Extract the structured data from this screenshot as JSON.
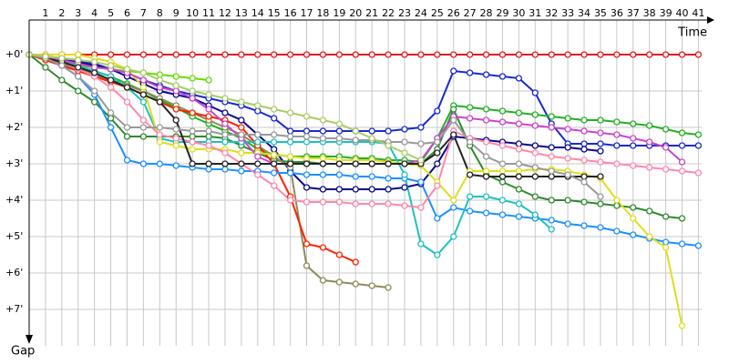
{
  "chart_data": {
    "type": "line",
    "x_label": "Time",
    "y_label": "Gap",
    "x": [
      0,
      1,
      2,
      3,
      4,
      5,
      6,
      7,
      8,
      9,
      10,
      11,
      12,
      13,
      14,
      15,
      16,
      17,
      18,
      19,
      20,
      21,
      22,
      23,
      24,
      25,
      26,
      27,
      28,
      29,
      30,
      31,
      32,
      33,
      34,
      35,
      36,
      37,
      38,
      39,
      40,
      41
    ],
    "xlim": [
      0,
      41.2
    ],
    "xticks": [
      1,
      2,
      3,
      4,
      5,
      6,
      7,
      8,
      9,
      10,
      11,
      12,
      13,
      14,
      15,
      16,
      17,
      18,
      19,
      20,
      21,
      22,
      23,
      24,
      25,
      26,
      27,
      28,
      29,
      30,
      31,
      32,
      33,
      34,
      35,
      36,
      37,
      38,
      39,
      40,
      41
    ],
    "ylim": [
      -0.95,
      8.05
    ],
    "yticks": [
      {
        "value": 0,
        "label": "+0'"
      },
      {
        "value": 1,
        "label": "+1'"
      },
      {
        "value": 2,
        "label": "+2'"
      },
      {
        "value": 3,
        "label": "+3'"
      },
      {
        "value": 4,
        "label": "+4'"
      },
      {
        "value": 5,
        "label": "+5'"
      },
      {
        "value": 6,
        "label": "+6'"
      },
      {
        "value": 7,
        "label": "+7'"
      }
    ],
    "grid": true,
    "series": [
      {
        "color": "#e41a1c",
        "values": [
          0,
          0,
          0,
          0,
          0,
          0,
          0,
          0,
          0,
          0,
          0,
          0,
          0,
          0,
          0,
          0,
          0,
          0,
          0,
          0,
          0,
          0,
          0,
          0,
          0,
          0,
          0,
          0,
          0,
          0,
          0,
          0,
          0,
          0,
          0,
          0,
          0,
          0,
          0,
          0,
          0,
          0
        ]
      },
      {
        "color": "#1a2ad0",
        "values": [
          0,
          0.05,
          0.1,
          0.15,
          0.25,
          0.4,
          0.5,
          0.7,
          0.85,
          1.0,
          1.1,
          1.2,
          1.3,
          1.4,
          1.55,
          1.75,
          2.1,
          2.1,
          2.1,
          2.1,
          2.1,
          2.1,
          2.1,
          2.05,
          2.0,
          1.55,
          0.45,
          0.5,
          0.55,
          0.6,
          0.65,
          1.05,
          1.9,
          2.45,
          2.45,
          2.45,
          2.5,
          2.5,
          2.5,
          2.5,
          2.5,
          2.5
        ]
      },
      {
        "color": "#0a0a8c",
        "values": [
          0,
          0.05,
          0.1,
          0.2,
          0.3,
          0.4,
          0.6,
          0.8,
          1.0,
          1.1,
          1.2,
          1.4,
          1.6,
          1.8,
          2.2,
          2.6,
          3.2,
          3.65,
          3.7,
          3.7,
          3.7,
          3.7,
          3.7,
          3.65,
          3.55,
          3.0,
          2.25,
          2.3,
          2.35,
          2.4,
          2.45,
          2.5,
          2.55,
          2.55,
          2.6,
          2.65,
          null,
          null,
          null,
          null,
          null,
          null
        ]
      },
      {
        "color": "#22b022",
        "values": [
          0,
          0.1,
          0.2,
          0.3,
          0.45,
          0.6,
          0.8,
          1.0,
          1.25,
          1.45,
          1.7,
          1.9,
          2.1,
          2.3,
          2.6,
          2.75,
          2.8,
          2.8,
          2.8,
          2.8,
          2.85,
          2.85,
          2.9,
          2.9,
          2.95,
          2.3,
          1.4,
          1.45,
          1.5,
          1.55,
          1.6,
          1.65,
          1.7,
          1.75,
          1.8,
          1.8,
          1.85,
          1.9,
          1.95,
          2.05,
          2.15,
          2.2
        ]
      },
      {
        "color": "#66dd00",
        "values": [
          0,
          0.1,
          0.2,
          0.3,
          0.35,
          0.4,
          0.45,
          0.5,
          0.55,
          0.6,
          0.65,
          0.7,
          null,
          null,
          null,
          null,
          null,
          null,
          null,
          null,
          null,
          null,
          null,
          null,
          null,
          null,
          null,
          null,
          null,
          null,
          null,
          null,
          null,
          null,
          null,
          null,
          null,
          null,
          null,
          null,
          null,
          null
        ]
      },
      {
        "color": "#2e8b2e",
        "values": [
          0,
          0.35,
          0.7,
          1.0,
          1.3,
          1.75,
          2.25,
          2.25,
          2.25,
          2.25,
          2.25,
          2.25,
          2.3,
          2.5,
          2.7,
          2.9,
          2.95,
          2.95,
          3.0,
          3.0,
          3.0,
          3.0,
          3.0,
          3.0,
          3.0,
          2.6,
          1.5,
          2.5,
          3.3,
          3.5,
          3.7,
          3.9,
          4.0,
          4.0,
          4.05,
          4.1,
          4.15,
          4.2,
          4.3,
          4.45,
          4.5,
          null
        ]
      },
      {
        "color": "#8c8c5a",
        "values": [
          0,
          0.1,
          0.25,
          0.4,
          0.55,
          0.7,
          0.85,
          1.0,
          1.2,
          1.4,
          1.6,
          1.8,
          2.0,
          2.2,
          2.5,
          2.8,
          3.1,
          5.8,
          6.2,
          6.25,
          6.3,
          6.35,
          6.4,
          null,
          null,
          null,
          null,
          null,
          null,
          null,
          null,
          null,
          null,
          null,
          null,
          null,
          null,
          null,
          null,
          null,
          null,
          null
        ]
      },
      {
        "color": "#ff2200",
        "values": [
          0,
          0.15,
          0.3,
          0.45,
          0.6,
          0.75,
          0.9,
          1.1,
          1.3,
          1.5,
          1.6,
          1.7,
          1.8,
          2.0,
          2.5,
          3.0,
          3.9,
          5.2,
          5.3,
          5.5,
          5.7,
          null,
          null,
          null,
          null,
          null,
          null,
          null,
          null,
          null,
          null,
          null,
          null,
          null,
          null,
          null,
          null,
          null,
          null,
          null,
          null,
          null
        ]
      },
      {
        "color": "#1e90ff",
        "values": [
          0,
          0.1,
          0.3,
          0.6,
          1.1,
          2.0,
          2.9,
          3.0,
          3.0,
          3.05,
          3.1,
          3.15,
          3.15,
          3.2,
          3.2,
          3.25,
          3.25,
          3.3,
          3.3,
          3.3,
          3.35,
          3.35,
          3.4,
          3.4,
          3.5,
          4.5,
          4.2,
          4.3,
          4.35,
          4.4,
          4.45,
          4.5,
          4.55,
          4.65,
          4.7,
          4.75,
          4.85,
          4.95,
          5.05,
          5.15,
          5.2,
          5.25
        ]
      },
      {
        "color": "#20c0c0",
        "values": [
          0,
          0.05,
          0.15,
          0.3,
          0.45,
          0.6,
          0.9,
          1.3,
          2.3,
          2.4,
          2.4,
          2.4,
          2.4,
          2.4,
          2.4,
          2.4,
          2.4,
          2.4,
          2.4,
          2.4,
          2.4,
          2.4,
          2.45,
          3.3,
          5.2,
          5.5,
          5.0,
          3.9,
          3.9,
          4.0,
          4.1,
          4.4,
          4.8,
          null,
          null,
          null,
          null,
          null,
          null,
          null,
          null,
          null
        ]
      },
      {
        "color": "#dede1e",
        "values": [
          0,
          0,
          0,
          0,
          0.1,
          0.2,
          0.4,
          0.9,
          2.4,
          2.5,
          2.6,
          2.6,
          2.6,
          2.7,
          2.7,
          2.75,
          2.8,
          2.85,
          2.85,
          2.9,
          2.9,
          2.9,
          2.95,
          3.0,
          3.05,
          3.5,
          4.0,
          3.2,
          3.2,
          3.2,
          3.2,
          3.15,
          3.15,
          3.2,
          3.3,
          3.4,
          4.0,
          4.5,
          5.0,
          5.3,
          7.45,
          null
        ]
      },
      {
        "color": "#cc44cc",
        "values": [
          0,
          0.05,
          0.15,
          0.25,
          0.35,
          0.4,
          0.5,
          0.7,
          0.9,
          1.0,
          1.2,
          1.5,
          1.9,
          2.3,
          2.8,
          3.0,
          3.0,
          3.0,
          3.0,
          3.0,
          3.0,
          3.0,
          3.0,
          3.0,
          2.9,
          2.3,
          1.7,
          1.75,
          1.8,
          1.85,
          1.9,
          1.95,
          2.0,
          2.05,
          2.1,
          2.15,
          2.2,
          2.3,
          2.4,
          2.55,
          2.95,
          null
        ]
      },
      {
        "color": "#ff88aa",
        "values": [
          0,
          0.1,
          0.2,
          0.4,
          0.6,
          0.9,
          1.3,
          1.8,
          2.2,
          2.3,
          2.4,
          2.5,
          2.7,
          3.0,
          3.3,
          3.6,
          4.0,
          4.05,
          4.05,
          4.05,
          4.1,
          4.1,
          4.1,
          4.15,
          4.2,
          3.6,
          2.1,
          2.3,
          2.4,
          2.5,
          2.6,
          2.7,
          2.8,
          2.85,
          2.9,
          2.95,
          3.0,
          3.05,
          3.1,
          3.15,
          3.2,
          3.25
        ]
      },
      {
        "color": "#222222",
        "values": [
          0,
          0.1,
          0.2,
          0.35,
          0.5,
          0.7,
          0.9,
          1.1,
          1.3,
          1.8,
          3.0,
          3.0,
          3.0,
          3.0,
          3.0,
          3.0,
          3.0,
          3.0,
          3.0,
          3.0,
          3.0,
          3.0,
          3.0,
          3.0,
          3.0,
          2.7,
          2.2,
          3.3,
          3.35,
          3.35,
          3.35,
          3.35,
          3.35,
          3.35,
          3.35,
          3.35,
          null,
          null,
          null,
          null,
          null,
          null
        ]
      },
      {
        "color": "#999999",
        "values": [
          0,
          0.1,
          0.3,
          0.6,
          1.0,
          1.6,
          2.0,
          2.0,
          2.0,
          2.05,
          2.1,
          2.1,
          2.2,
          2.2,
          2.2,
          2.2,
          2.25,
          2.25,
          2.3,
          2.3,
          2.35,
          2.35,
          2.4,
          2.4,
          2.45,
          2.4,
          1.8,
          2.4,
          2.8,
          3.0,
          3.0,
          3.1,
          3.2,
          3.3,
          3.5,
          3.9,
          null,
          null,
          null,
          null,
          null,
          null
        ]
      },
      {
        "color": "#aacc66",
        "values": [
          0,
          0.05,
          0.1,
          0.15,
          0.2,
          0.3,
          0.4,
          0.5,
          0.7,
          0.85,
          1.0,
          1.1,
          1.2,
          1.3,
          1.4,
          1.5,
          1.6,
          1.7,
          1.8,
          1.9,
          2.1,
          2.3,
          2.5,
          2.7,
          2.9,
          null,
          null,
          null,
          null,
          null,
          null,
          null,
          null,
          null,
          null,
          null,
          null,
          null,
          null,
          null,
          null,
          null
        ]
      }
    ]
  }
}
